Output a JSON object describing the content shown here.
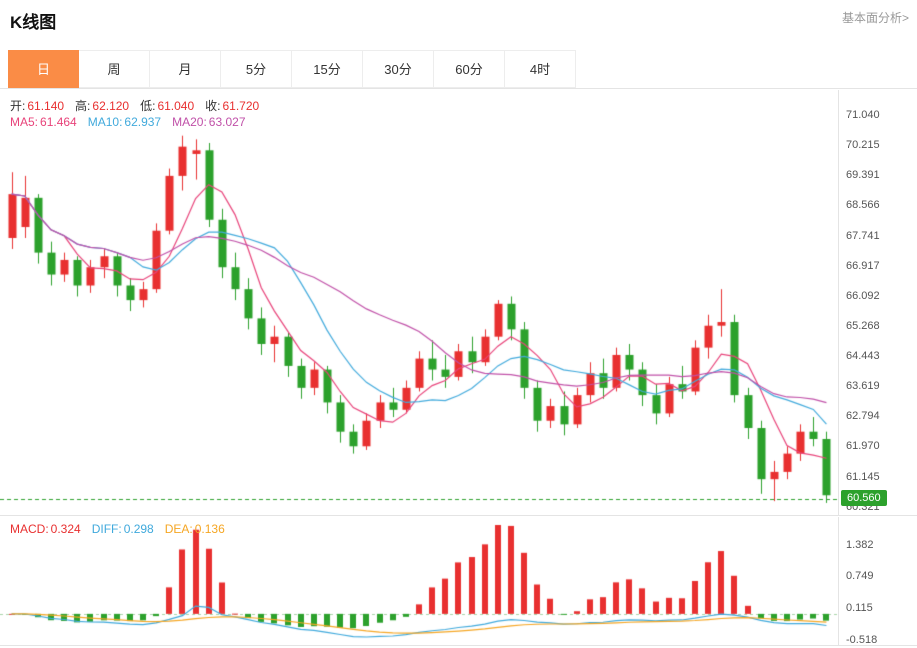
{
  "header": {
    "title": "K线图",
    "link": "基本面分析>"
  },
  "tabs": [
    {
      "label": "日",
      "active": true
    },
    {
      "label": "周",
      "active": false
    },
    {
      "label": "月",
      "active": false
    },
    {
      "label": "5分",
      "active": false
    },
    {
      "label": "15分",
      "active": false
    },
    {
      "label": "30分",
      "active": false
    },
    {
      "label": "60分",
      "active": false
    },
    {
      "label": "4时",
      "active": false
    }
  ],
  "ohlc": {
    "open_label": "开:",
    "open": "61.140",
    "high_label": "高:",
    "high": "62.120",
    "low_label": "低:",
    "low": "61.040",
    "close_label": "收:",
    "close": "61.720"
  },
  "ma_info": {
    "ma5_label": "MA5:",
    "ma5": "61.464",
    "ma10_label": "MA10:",
    "ma10": "62.937",
    "ma20_label": "MA20:",
    "ma20": "63.027"
  },
  "macd_info": {
    "macd_label": "MACD:",
    "macd": "0.324",
    "diff_label": "DIFF:",
    "diff": "0.298",
    "dea_label": "DEA:",
    "dea": "0.136"
  },
  "colors": {
    "up": "#e83030",
    "down": "#2ca12c",
    "accent": "#fa8c46",
    "ma5": "#e8437a",
    "ma10": "#42aadc",
    "ma20": "#c050a8",
    "diff": "#3fa9dc",
    "dea": "#f5a623",
    "axis_text": "#555",
    "border": "#e4e4e4"
  },
  "chart_data": {
    "type": "candlestick",
    "title": "K线图",
    "timeframe": "日",
    "legend": [
      "MA5",
      "MA10",
      "MA20"
    ],
    "y_ticks": [
      71.04,
      70.215,
      69.391,
      68.566,
      67.741,
      66.917,
      66.092,
      65.268,
      64.443,
      63.619,
      62.794,
      61.97,
      61.145,
      60.321
    ],
    "plot_ymax": 71.75,
    "plot_ymin": 60.12,
    "current_price": 60.56,
    "current_price_label": "60.560",
    "ma_periods": [
      5,
      10,
      20
    ],
    "candles": [
      [
        67.7,
        69.5,
        67.4,
        68.9
      ],
      [
        68.0,
        69.4,
        67.7,
        68.8
      ],
      [
        68.8,
        68.9,
        67.0,
        67.3
      ],
      [
        67.3,
        67.6,
        66.4,
        66.7
      ],
      [
        66.7,
        67.3,
        66.5,
        67.1
      ],
      [
        67.1,
        67.2,
        66.1,
        66.4
      ],
      [
        66.4,
        67.1,
        66.2,
        66.9
      ],
      [
        66.9,
        67.4,
        66.6,
        67.2
      ],
      [
        67.2,
        67.3,
        66.1,
        66.4
      ],
      [
        66.4,
        66.6,
        65.7,
        66.0
      ],
      [
        66.0,
        66.5,
        65.8,
        66.3
      ],
      [
        66.3,
        68.1,
        66.2,
        67.9
      ],
      [
        67.9,
        69.6,
        67.8,
        69.4
      ],
      [
        69.4,
        70.5,
        69.0,
        70.2
      ],
      [
        70.0,
        70.4,
        69.3,
        70.1
      ],
      [
        70.1,
        70.3,
        68.0,
        68.2
      ],
      [
        68.2,
        68.5,
        66.6,
        66.9
      ],
      [
        66.9,
        67.3,
        66.0,
        66.3
      ],
      [
        66.3,
        66.6,
        65.2,
        65.5
      ],
      [
        65.5,
        65.8,
        64.5,
        64.8
      ],
      [
        64.8,
        65.3,
        64.3,
        65.0
      ],
      [
        65.0,
        65.1,
        63.9,
        64.2
      ],
      [
        64.2,
        64.4,
        63.3,
        63.6
      ],
      [
        63.6,
        64.3,
        63.4,
        64.1
      ],
      [
        64.1,
        64.2,
        62.9,
        63.2
      ],
      [
        63.2,
        63.4,
        62.1,
        62.4
      ],
      [
        62.4,
        62.6,
        61.8,
        62.0
      ],
      [
        62.0,
        62.9,
        61.9,
        62.7
      ],
      [
        62.7,
        63.4,
        62.5,
        63.2
      ],
      [
        63.2,
        63.6,
        62.8,
        63.0
      ],
      [
        63.0,
        63.8,
        62.9,
        63.6
      ],
      [
        63.6,
        64.6,
        63.5,
        64.4
      ],
      [
        64.4,
        64.9,
        63.8,
        64.1
      ],
      [
        64.1,
        64.5,
        63.6,
        63.9
      ],
      [
        63.9,
        64.8,
        63.8,
        64.6
      ],
      [
        64.6,
        65.0,
        64.0,
        64.3
      ],
      [
        64.3,
        65.2,
        64.2,
        65.0
      ],
      [
        65.0,
        66.0,
        64.9,
        65.9
      ],
      [
        65.9,
        66.1,
        64.9,
        65.2
      ],
      [
        65.2,
        65.4,
        63.3,
        63.6
      ],
      [
        63.6,
        63.8,
        62.4,
        62.7
      ],
      [
        62.7,
        63.3,
        62.5,
        63.1
      ],
      [
        63.1,
        63.5,
        62.3,
        62.6
      ],
      [
        62.6,
        63.6,
        62.5,
        63.4
      ],
      [
        63.4,
        64.3,
        63.2,
        64.0
      ],
      [
        64.0,
        64.4,
        63.3,
        63.6
      ],
      [
        63.6,
        64.7,
        63.5,
        64.5
      ],
      [
        64.5,
        64.8,
        63.8,
        64.1
      ],
      [
        64.1,
        64.3,
        63.1,
        63.4
      ],
      [
        63.4,
        63.7,
        62.6,
        62.9
      ],
      [
        62.9,
        63.9,
        62.8,
        63.7
      ],
      [
        63.7,
        64.2,
        63.3,
        63.5
      ],
      [
        63.5,
        64.9,
        63.4,
        64.7
      ],
      [
        64.7,
        65.6,
        64.4,
        65.3
      ],
      [
        65.3,
        66.3,
        65.0,
        65.4
      ],
      [
        65.4,
        65.6,
        63.2,
        63.4
      ],
      [
        63.4,
        63.6,
        62.2,
        62.5
      ],
      [
        62.5,
        62.7,
        60.7,
        61.1
      ],
      [
        61.1,
        61.6,
        60.5,
        61.3
      ],
      [
        61.3,
        62.0,
        61.1,
        61.8
      ],
      [
        61.8,
        62.6,
        61.6,
        62.4
      ],
      [
        62.4,
        62.8,
        62.0,
        62.2
      ],
      [
        62.2,
        62.4,
        60.45,
        60.66
      ]
    ],
    "macd_panel": {
      "y_ticks": [
        1.382,
        0.749,
        0.115,
        -0.518
      ],
      "axis_ymax": 1.93,
      "axis_ymin": -0.62,
      "ema_fast": 12,
      "ema_slow": 26,
      "ema_signal": 9
    }
  }
}
